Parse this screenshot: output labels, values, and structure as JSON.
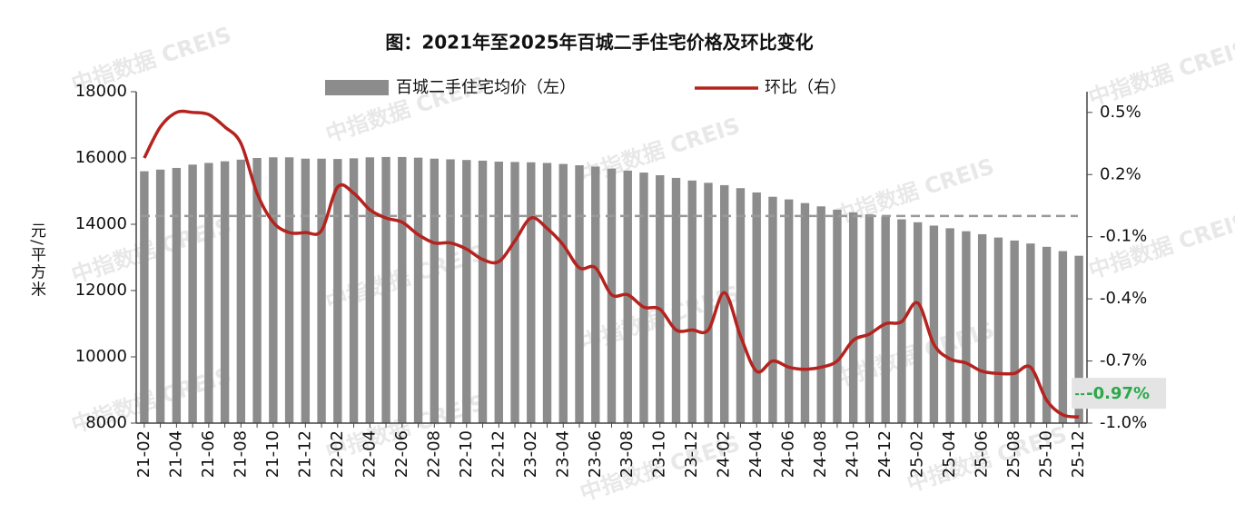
{
  "chart_data": {
    "type": "bar_line",
    "title": "图：2021年至2025年百城二手住宅价格及环比变化",
    "y_label": "元/平方米",
    "watermark": "中指数据 CREIS",
    "categories": [
      "21-02",
      null,
      "21-04",
      null,
      "21-06",
      null,
      "21-08",
      null,
      "21-10",
      null,
      "21-12",
      null,
      "22-02",
      null,
      "22-04",
      null,
      "22-06",
      null,
      "22-08",
      null,
      "22-10",
      null,
      "22-12",
      null,
      "23-02",
      null,
      "23-04",
      null,
      "23-06",
      null,
      "23-08",
      null,
      "23-10",
      null,
      "23-12",
      null,
      "24-02",
      null,
      "24-04",
      null,
      "24-06",
      null,
      "24-08",
      null,
      "24-10",
      null,
      "24-12",
      null,
      "25-02",
      null,
      "25-04",
      null,
      "25-06",
      null,
      "25-08",
      null,
      "25-10",
      null,
      "25-12"
    ],
    "series": [
      {
        "name": "百城二手住宅均价（左）",
        "type": "bar",
        "axis": "y",
        "color": "#8c8c8c",
        "values": [
          15600,
          15650,
          15700,
          15800,
          15850,
          15900,
          15950,
          16000,
          16020,
          16020,
          15980,
          15980,
          15970,
          15990,
          16020,
          16030,
          16030,
          16010,
          15980,
          15960,
          15940,
          15920,
          15890,
          15880,
          15870,
          15850,
          15820,
          15780,
          15740,
          15680,
          15620,
          15560,
          15480,
          15400,
          15320,
          15250,
          15180,
          15090,
          14960,
          14830,
          14750,
          14640,
          14540,
          14440,
          14360,
          14300,
          14230,
          14150,
          14060,
          13960,
          13880,
          13790,
          13700,
          13600,
          13510,
          13420,
          13320,
          13190,
          13050
        ]
      },
      {
        "name": "环比（右）",
        "type": "line",
        "axis": "y2",
        "color": "#b5231f",
        "values": [
          0.28,
          0.43,
          0.5,
          0.5,
          0.49,
          0.43,
          0.35,
          0.11,
          -0.03,
          -0.08,
          -0.08,
          -0.07,
          0.14,
          0.11,
          0.03,
          -0.01,
          -0.03,
          -0.09,
          -0.13,
          -0.13,
          -0.16,
          -0.21,
          -0.22,
          -0.12,
          -0.01,
          -0.06,
          -0.14,
          -0.25,
          -0.25,
          -0.38,
          -0.38,
          -0.44,
          -0.45,
          -0.55,
          -0.55,
          -0.55,
          -0.37,
          -0.58,
          -0.75,
          -0.7,
          -0.73,
          -0.74,
          -0.73,
          -0.7,
          -0.6,
          -0.57,
          -0.52,
          -0.51,
          -0.42,
          -0.62,
          -0.69,
          -0.71,
          -0.75,
          -0.76,
          -0.76,
          -0.73,
          -0.89,
          -0.96,
          -0.97
        ],
        "value_labels": [
          null,
          null,
          null,
          null,
          null,
          null,
          null,
          null,
          null,
          null,
          null,
          null,
          null,
          null,
          null,
          null,
          null,
          null,
          null,
          null,
          null,
          null,
          null,
          null,
          null,
          null,
          null,
          null,
          null,
          null,
          null,
          null,
          null,
          null,
          null,
          null,
          null,
          null,
          null,
          null,
          null,
          null,
          null,
          null,
          null,
          null,
          null,
          null,
          null,
          null,
          null,
          null,
          null,
          null,
          null,
          null,
          null,
          null,
          "-0.97%"
        ],
        "value_label_color": "#2aa84a"
      }
    ],
    "ylim": [
      8000,
      18000
    ],
    "yticks": [
      8000,
      10000,
      12000,
      14000,
      16000,
      18000
    ],
    "y2lim": [
      -1.0,
      0.6
    ],
    "y2ticks": [
      {
        "value": 0.5,
        "label": "0.5%"
      },
      {
        "value": 0.2,
        "label": "0.2%"
      },
      {
        "value": -0.1,
        "label": "-0.1%"
      },
      {
        "value": -0.4,
        "label": "-0.4%"
      },
      {
        "value": -0.7,
        "label": "-0.7%"
      },
      {
        "value": -1.0,
        "label": "-1.0%"
      }
    ],
    "y2_zero_line": true,
    "legend": "top"
  }
}
